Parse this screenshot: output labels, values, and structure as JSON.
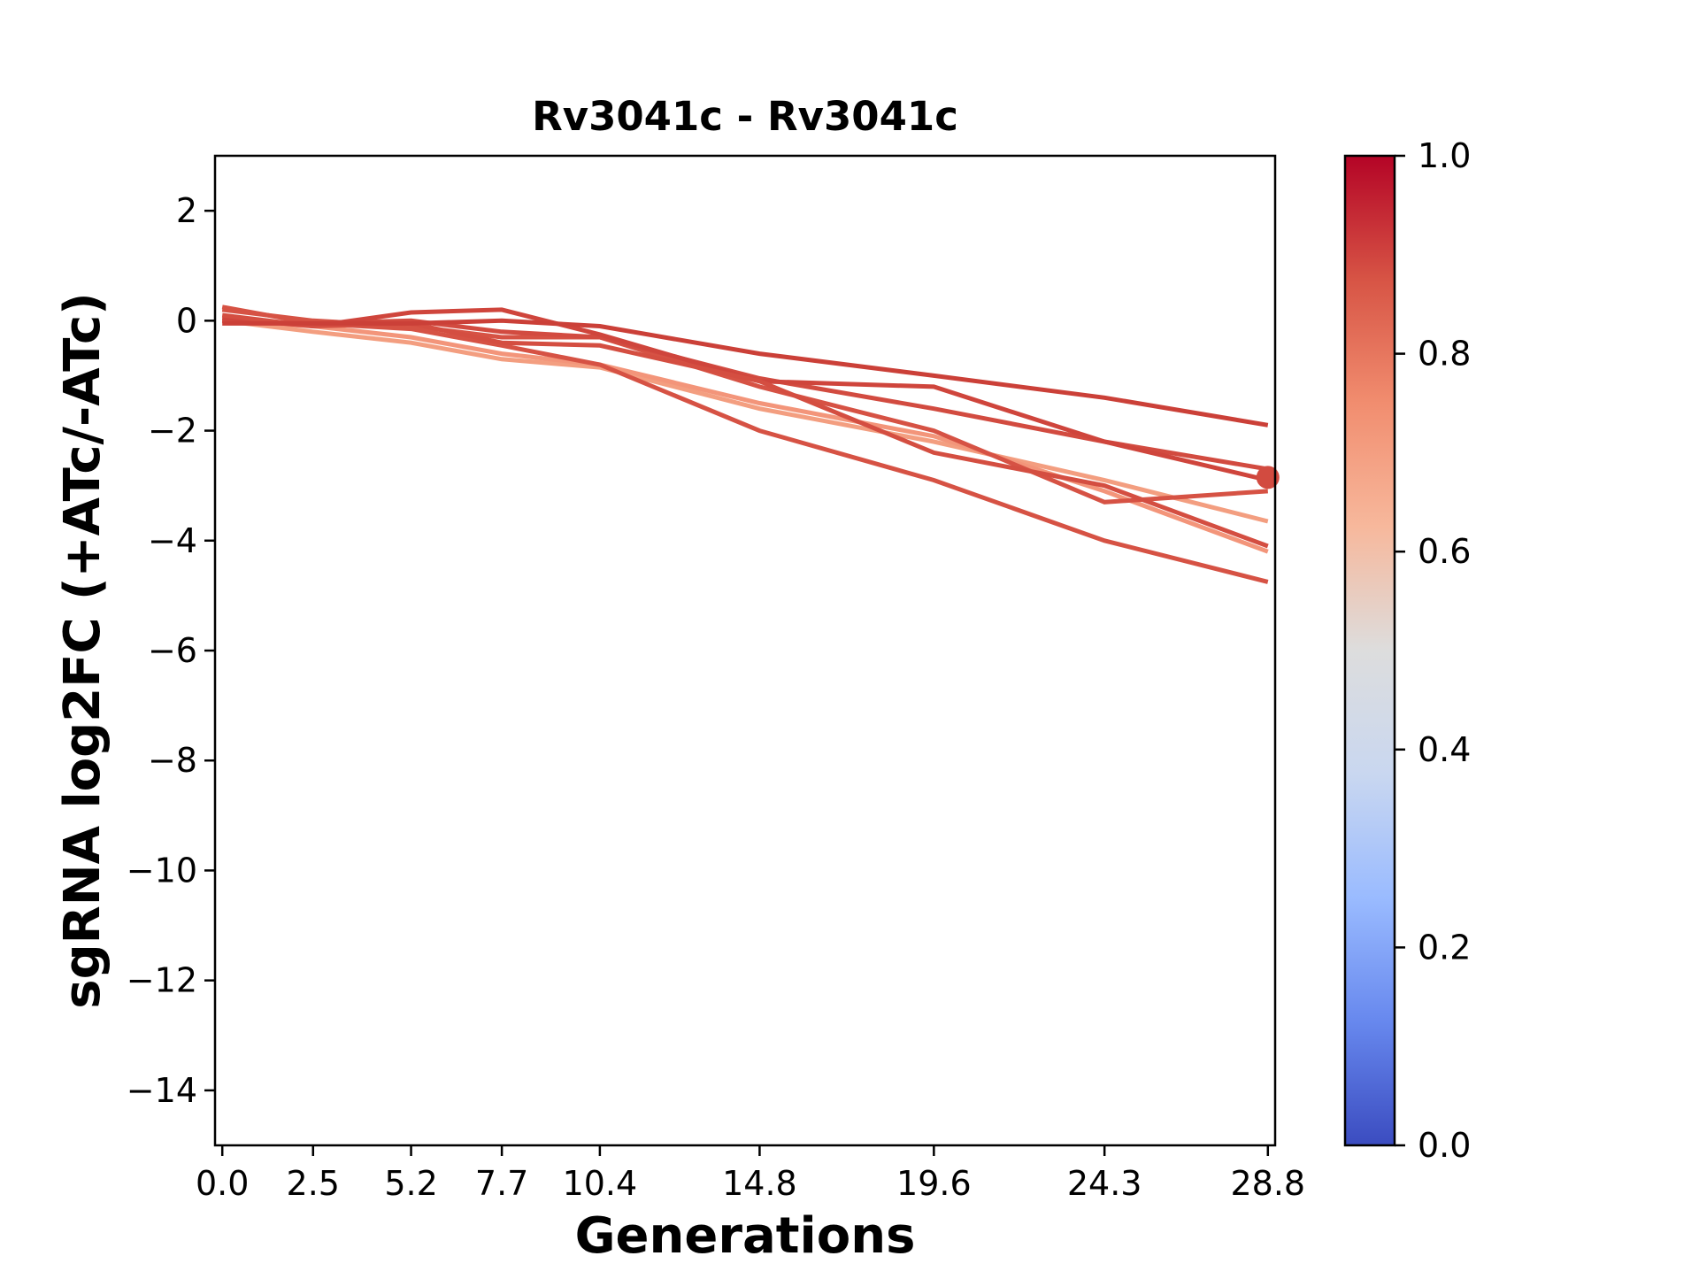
{
  "chart_data": {
    "type": "line",
    "title": "Rv3041c - Rv3041c",
    "xlabel": "Generations",
    "ylabel": "sgRNA log2FC (+ATc/-ATc)",
    "x": [
      0.0,
      2.5,
      5.2,
      7.7,
      10.4,
      14.8,
      19.6,
      24.3,
      28.8
    ],
    "x_tick_labels": [
      "0.0",
      "2.5",
      "5.2",
      "7.7",
      "10.4",
      "14.8",
      "19.6",
      "24.3",
      "28.8"
    ],
    "xlim": [
      -0.2,
      29.0
    ],
    "ylim": [
      -15,
      3
    ],
    "y_ticks": [
      2,
      0,
      -2,
      -4,
      -6,
      -8,
      -10,
      -12,
      -14
    ],
    "y_tick_labels": [
      "2",
      "0",
      "−2",
      "−4",
      "−6",
      "−8",
      "−10",
      "−12",
      "−14"
    ],
    "grid": false,
    "series": [
      {
        "values": [
          0.0,
          -0.2,
          -0.4,
          -0.7,
          -0.85,
          -1.6,
          -2.2,
          -2.9,
          -3.65
        ],
        "color_value": 0.72,
        "color": "#f39e80"
      },
      {
        "values": [
          0.0,
          -0.1,
          -0.3,
          -0.6,
          -0.8,
          -1.5,
          -2.1,
          -3.1,
          -4.2
        ],
        "color_value": 0.74,
        "color": "#f3957a"
      },
      {
        "values": [
          0.2,
          0.0,
          -0.1,
          -0.3,
          -0.3,
          -1.2,
          -2.0,
          -3.3,
          -3.1
        ],
        "color_value": 0.9,
        "color": "#d65244"
      },
      {
        "values": [
          0.25,
          -0.05,
          -0.15,
          -0.45,
          -0.8,
          -2.0,
          -2.9,
          -4.0,
          -4.75
        ],
        "color_value": 0.9,
        "color": "#d65244"
      },
      {
        "values": [
          0.0,
          -0.05,
          0.0,
          -0.2,
          -0.3,
          -1.05,
          -1.6,
          -2.2,
          -2.7
        ],
        "color_value": 0.92,
        "color": "#d24b40"
      },
      {
        "values": [
          0.05,
          -0.1,
          0.15,
          0.2,
          -0.25,
          -1.1,
          -1.2,
          -2.2,
          -2.9
        ],
        "color_value": 0.93,
        "color": "#cf453c"
      },
      {
        "values": [
          0.1,
          -0.1,
          -0.05,
          -0.4,
          -0.45,
          -1.1,
          -2.4,
          -3.0,
          -4.1
        ],
        "color_value": 0.91,
        "color": "#d44e41"
      },
      {
        "values": [
          -0.05,
          -0.05,
          -0.05,
          0.0,
          -0.1,
          -0.6,
          -1.0,
          -1.4,
          -1.9
        ],
        "color_value": 0.94,
        "color": "#cb4038"
      }
    ],
    "marker": {
      "x": 28.8,
      "y": -2.85,
      "color": "#d24b40"
    },
    "colorbar": {
      "colormap": "coolwarm",
      "range": [
        0.0,
        1.0
      ],
      "ticks": [
        1.0,
        0.8,
        0.6,
        0.4,
        0.2,
        0.0
      ],
      "tick_labels": [
        "1.0",
        "0.8",
        "0.6",
        "0.4",
        "0.2",
        "0.0"
      ],
      "stops": [
        "#3b4cc0",
        "#6788ee",
        "#9abbff",
        "#c9d7f0",
        "#dddddd",
        "#f7b89c",
        "#f18d6f",
        "#d75445",
        "#b40426"
      ]
    }
  }
}
